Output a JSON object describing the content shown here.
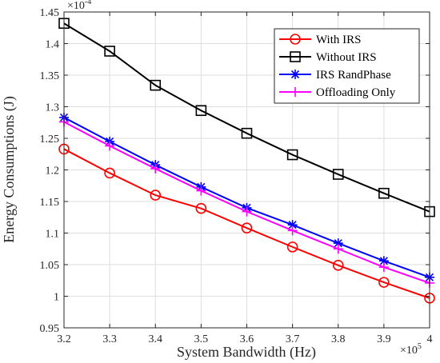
{
  "chart_data": {
    "type": "line",
    "title": "",
    "xlabel": "System Bandwidth (Hz)",
    "ylabel": "Energy Consumptions (J)",
    "x_multiplier_label": "×10",
    "x_multiplier_exp": "5",
    "y_multiplier_label": "×10",
    "y_multiplier_exp": "-4",
    "xlim": [
      3.2,
      4.0
    ],
    "ylim": [
      0.95,
      1.45
    ],
    "x_ticks": [
      "3.2",
      "3.3",
      "3.4",
      "3.5",
      "3.6",
      "3.7",
      "3.8",
      "3.9",
      "4"
    ],
    "y_ticks": [
      "0.95",
      "1",
      "1.05",
      "1.1",
      "1.15",
      "1.2",
      "1.25",
      "1.3",
      "1.35",
      "1.4",
      "1.45"
    ],
    "grid": true,
    "legend_position": "top-right",
    "x": [
      3.2,
      3.3,
      3.4,
      3.5,
      3.6,
      3.7,
      3.8,
      3.9,
      4.0
    ],
    "series": [
      {
        "name": "With IRS",
        "color": "#ff0000",
        "marker": "circle",
        "values": [
          1.233,
          1.195,
          1.16,
          1.139,
          1.108,
          1.078,
          1.049,
          1.022,
          0.997
        ]
      },
      {
        "name": "Without IRS",
        "color": "#000000",
        "marker": "square",
        "values": [
          1.432,
          1.388,
          1.334,
          1.294,
          1.258,
          1.224,
          1.193,
          1.163,
          1.134
        ]
      },
      {
        "name": "IRS RandPhase",
        "color": "#0000ff",
        "marker": "asterisk",
        "values": [
          1.283,
          1.245,
          1.208,
          1.173,
          1.14,
          1.113,
          1.084,
          1.056,
          1.03
        ]
      },
      {
        "name": "Offloading Only",
        "color": "#ff00ff",
        "marker": "plus",
        "values": [
          1.276,
          1.238,
          1.202,
          1.167,
          1.134,
          1.104,
          1.075,
          1.046,
          1.021
        ]
      }
    ]
  }
}
